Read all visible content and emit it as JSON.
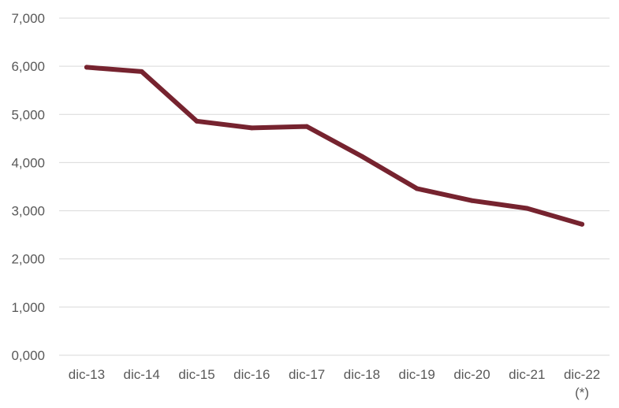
{
  "chart_data": {
    "type": "line",
    "title": "",
    "xlabel": "",
    "ylabel": "",
    "categories": [
      "dic-13",
      "dic-14",
      "dic-15",
      "dic-16",
      "dic-17",
      "dic-18",
      "dic-19",
      "dic-20",
      "dic-21",
      "dic-22"
    ],
    "category_notes": [
      "",
      "",
      "",
      "",
      "",
      "",
      "",
      "",
      "",
      "(*)"
    ],
    "series": [
      {
        "values": [
          5.98,
          5.89,
          4.86,
          4.72,
          4.75,
          4.13,
          3.46,
          3.21,
          3.05,
          2.72
        ],
        "color": "#76232f"
      }
    ],
    "ylim": [
      0,
      7
    ],
    "yticks": [
      0,
      1,
      2,
      3,
      4,
      5,
      6,
      7
    ],
    "ytick_labels": [
      "0,000",
      "1,000",
      "2,000",
      "3,000",
      "4,000",
      "5,000",
      "6,000",
      "7,000"
    ],
    "grid": true,
    "gridline_color": "#d9d9d9",
    "legend": "none"
  }
}
